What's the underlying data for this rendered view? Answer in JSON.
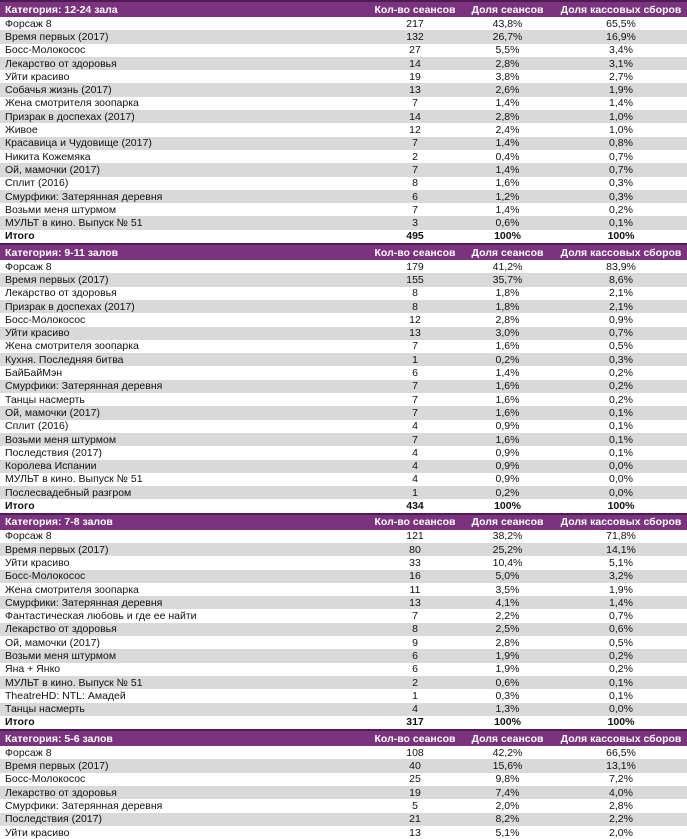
{
  "colors": {
    "header_bg": "#7B3380",
    "header_border": "#4F1B53",
    "header_text": "#FFFFFF",
    "stripe": "#D9D9D9",
    "text": "#111111"
  },
  "columns": [
    "Кол-во сеансов",
    "Доля сеансов",
    "Доля кассовых сборов"
  ],
  "total_label": "Итого",
  "tables": [
    {
      "category": "Категория: 12-24 зала",
      "rows": [
        [
          "Форсаж 8",
          "217",
          "43,8%",
          "65,5%"
        ],
        [
          "Время первых (2017)",
          "132",
          "26,7%",
          "16,9%"
        ],
        [
          "Босс-Молокосос",
          "27",
          "5,5%",
          "3,4%"
        ],
        [
          "Лекарство от здоровья",
          "14",
          "2,8%",
          "3,1%"
        ],
        [
          "Уйти красиво",
          "19",
          "3,8%",
          "2,7%"
        ],
        [
          "Собачья жизнь (2017)",
          "13",
          "2,6%",
          "1,9%"
        ],
        [
          "Жена смотрителя зоопарка",
          "7",
          "1,4%",
          "1,4%"
        ],
        [
          "Призрак в доспехах (2017)",
          "14",
          "2,8%",
          "1,0%"
        ],
        [
          "Живое",
          "12",
          "2,4%",
          "1,0%"
        ],
        [
          "Красавица и Чудовище (2017)",
          "7",
          "1,4%",
          "0,8%"
        ],
        [
          "Никита Кожемяка",
          "2",
          "0,4%",
          "0,7%"
        ],
        [
          "Ой, мамочки (2017)",
          "7",
          "1,4%",
          "0,7%"
        ],
        [
          "Сплит (2016)",
          "8",
          "1,6%",
          "0,3%"
        ],
        [
          "Смурфики: Затерянная деревня",
          "6",
          "1,2%",
          "0,3%"
        ],
        [
          "Возьми меня штурмом",
          "7",
          "1,4%",
          "0,2%"
        ],
        [
          "МУЛЬТ в кино. Выпуск № 51",
          "3",
          "0,6%",
          "0,1%"
        ]
      ],
      "total": [
        "495",
        "100%",
        "100%"
      ]
    },
    {
      "category": "Категория: 9-11 залов",
      "rows": [
        [
          "Форсаж 8",
          "179",
          "41,2%",
          "83,9%"
        ],
        [
          "Время первых (2017)",
          "155",
          "35,7%",
          "8,6%"
        ],
        [
          "Лекарство от здоровья",
          "8",
          "1,8%",
          "2,1%"
        ],
        [
          "Призрак в доспехах (2017)",
          "8",
          "1,8%",
          "2,1%"
        ],
        [
          "Босс-Молокосос",
          "12",
          "2,8%",
          "0,9%"
        ],
        [
          "Уйти красиво",
          "13",
          "3,0%",
          "0,7%"
        ],
        [
          "Жена смотрителя зоопарка",
          "7",
          "1,6%",
          "0,5%"
        ],
        [
          "Кухня. Последняя битва",
          "1",
          "0,2%",
          "0,3%"
        ],
        [
          "БайБайМэн",
          "6",
          "1,4%",
          "0,2%"
        ],
        [
          "Смурфики: Затерянная деревня",
          "7",
          "1,6%",
          "0,2%"
        ],
        [
          "Танцы насмерть",
          "7",
          "1,6%",
          "0,2%"
        ],
        [
          "Ой, мамочки (2017)",
          "7",
          "1,6%",
          "0,1%"
        ],
        [
          "Сплит (2016)",
          "4",
          "0,9%",
          "0,1%"
        ],
        [
          "Возьми меня штурмом",
          "7",
          "1,6%",
          "0,1%"
        ],
        [
          "Последствия (2017)",
          "4",
          "0,9%",
          "0,1%"
        ],
        [
          "Королева Испании",
          "4",
          "0,9%",
          "0,0%"
        ],
        [
          "МУЛЬТ в кино. Выпуск № 51",
          "4",
          "0,9%",
          "0,0%"
        ],
        [
          "Послесвадебный разгром",
          "1",
          "0,2%",
          "0,0%"
        ]
      ],
      "total": [
        "434",
        "100%",
        "100%"
      ]
    },
    {
      "category": "Категория: 7-8 залов",
      "rows": [
        [
          "Форсаж 8",
          "121",
          "38,2%",
          "71,8%"
        ],
        [
          "Время первых (2017)",
          "80",
          "25,2%",
          "14,1%"
        ],
        [
          "Уйти красиво",
          "33",
          "10,4%",
          "5,1%"
        ],
        [
          "Босс-Молокосос",
          "16",
          "5,0%",
          "3,2%"
        ],
        [
          "Жена смотрителя зоопарка",
          "11",
          "3,5%",
          "1,9%"
        ],
        [
          "Смурфики: Затерянная деревня",
          "13",
          "4,1%",
          "1,4%"
        ],
        [
          "Фантастическая любовь и где ее найти",
          "7",
          "2,2%",
          "0,7%"
        ],
        [
          "Лекарство от здоровья",
          "8",
          "2,5%",
          "0,6%"
        ],
        [
          "Ой, мамочки (2017)",
          "9",
          "2,8%",
          "0,5%"
        ],
        [
          "Возьми меня штурмом",
          "6",
          "1,9%",
          "0,2%"
        ],
        [
          "Яна + Янко",
          "6",
          "1,9%",
          "0,2%"
        ],
        [
          "МУЛЬТ в кино. Выпуск № 51",
          "2",
          "0,6%",
          "0,1%"
        ],
        [
          "TheatreHD: NTL: Амадей",
          "1",
          "0,3%",
          "0,1%"
        ],
        [
          "Танцы насмерть",
          "4",
          "1,3%",
          "0,0%"
        ]
      ],
      "total": [
        "317",
        "100%",
        "100%"
      ]
    },
    {
      "category": "Категория: 5-6 залов",
      "rows": [
        [
          "Форсаж 8",
          "108",
          "42,2%",
          "66,5%"
        ],
        [
          "Время первых (2017)",
          "40",
          "15,6%",
          "13,1%"
        ],
        [
          "Босс-Молокосос",
          "25",
          "9,8%",
          "7,2%"
        ],
        [
          "Лекарство от здоровья",
          "19",
          "7,4%",
          "4,0%"
        ],
        [
          "Смурфики: Затерянная деревня",
          "5",
          "2,0%",
          "2,8%"
        ],
        [
          "Последствия (2017)",
          "21",
          "8,2%",
          "2,2%"
        ],
        [
          "Уйти красиво",
          "13",
          "5,1%",
          "2,0%"
        ]
      ],
      "total": null
    }
  ]
}
